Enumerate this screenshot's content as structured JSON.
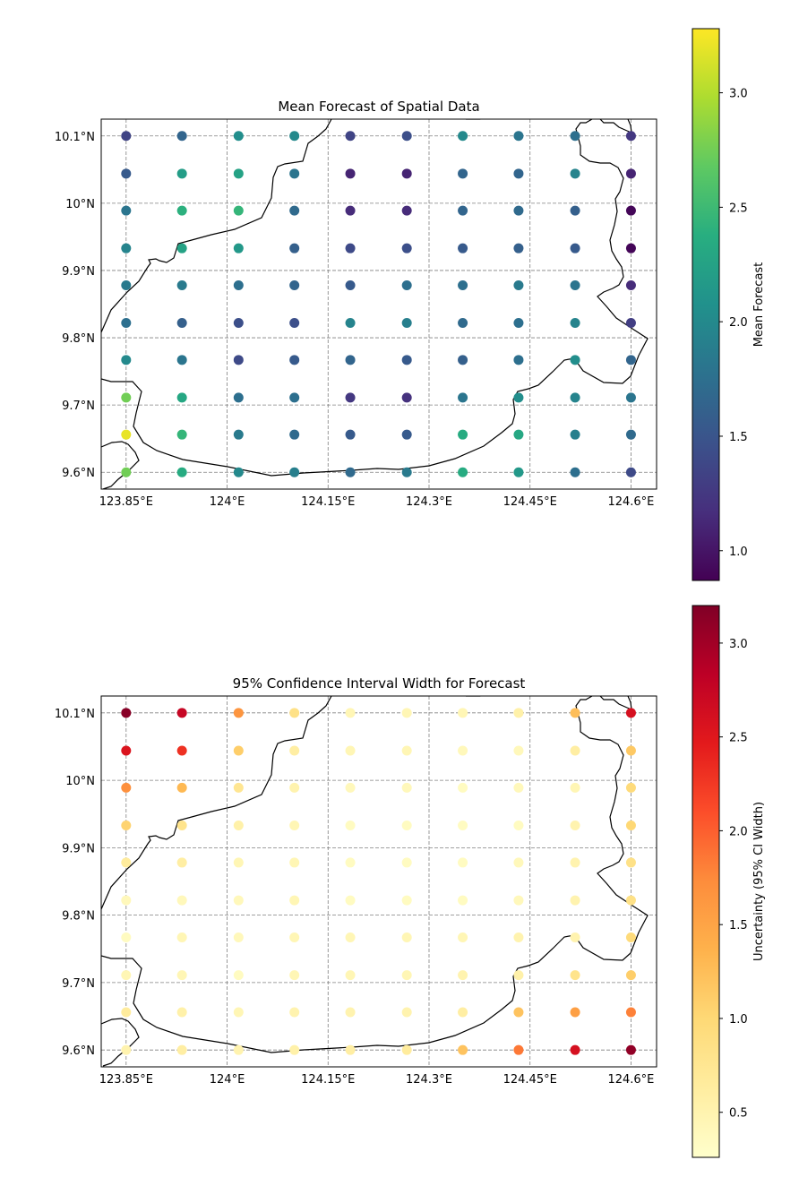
{
  "chart_data": [
    {
      "type": "scatter",
      "title": "Mean Forecast of Spatial Data",
      "colorbar_label": "Mean Forecast",
      "colormap": "viridis",
      "clim": [
        0.87,
        3.28
      ],
      "colorbar_ticks": [
        "1.0",
        "1.5",
        "2.0",
        "2.5",
        "3.0"
      ],
      "colorbar_tick_values": [
        1.0,
        1.5,
        2.0,
        2.5,
        3.0
      ],
      "x_ticks": [
        "123.85°E",
        "124°E",
        "124.15°E",
        "124.3°E",
        "124.45°E",
        "124.6°E"
      ],
      "x_tick_values": [
        123.85,
        124.0,
        124.15,
        124.3,
        124.45,
        124.6
      ],
      "y_ticks": [
        "9.6°N",
        "9.7°N",
        "9.8°N",
        "9.9°N",
        "10°N",
        "10.1°N"
      ],
      "y_tick_values": [
        9.6,
        9.7,
        9.8,
        9.9,
        10.0,
        10.1
      ],
      "xlim": [
        123.813,
        124.638
      ],
      "ylim": [
        9.575,
        10.125
      ],
      "grid": true,
      "lon": [
        123.85,
        123.933,
        124.017,
        124.1,
        124.183,
        124.267,
        124.35,
        124.433,
        124.517,
        124.6
      ],
      "lat": [
        10.1,
        10.044,
        9.989,
        9.933,
        9.878,
        9.822,
        9.767,
        9.711,
        9.656,
        9.6
      ],
      "values": [
        [
          1.35,
          1.65,
          2.05,
          2.0,
          1.35,
          1.45,
          2.0,
          1.8,
          1.75,
          1.25
        ],
        [
          1.55,
          2.2,
          2.25,
          1.8,
          1.1,
          1.1,
          1.65,
          1.65,
          1.95,
          1.1
        ],
        [
          1.8,
          2.4,
          2.45,
          1.7,
          1.15,
          1.15,
          1.65,
          1.7,
          1.6,
          0.9
        ],
        [
          1.95,
          2.25,
          2.15,
          1.6,
          1.4,
          1.45,
          1.55,
          1.6,
          1.55,
          0.9
        ],
        [
          1.85,
          1.85,
          1.75,
          1.65,
          1.55,
          1.75,
          1.75,
          1.85,
          1.8,
          1.15
        ],
        [
          1.75,
          1.6,
          1.45,
          1.45,
          1.95,
          1.9,
          1.7,
          1.75,
          1.95,
          1.3
        ],
        [
          2.0,
          1.8,
          1.4,
          1.55,
          1.65,
          1.55,
          1.6,
          1.75,
          2.05,
          1.65
        ],
        [
          2.75,
          2.3,
          1.75,
          1.75,
          1.25,
          1.2,
          1.8,
          2.05,
          1.95,
          1.8
        ],
        [
          3.2,
          2.45,
          1.85,
          1.7,
          1.55,
          1.55,
          2.35,
          2.3,
          1.9,
          1.7
        ],
        [
          2.75,
          2.35,
          2.0,
          1.9,
          1.7,
          1.85,
          2.35,
          2.15,
          1.75,
          1.4
        ]
      ]
    },
    {
      "type": "scatter",
      "title": "95% Confidence Interval Width for Forecast",
      "colorbar_label": "Uncertainty (95% CI Width)",
      "colormap": "YlOrRd",
      "clim": [
        0.26,
        3.2
      ],
      "colorbar_ticks": [
        "0.5",
        "1.0",
        "1.5",
        "2.0",
        "2.5",
        "3.0"
      ],
      "colorbar_tick_values": [
        0.5,
        1.0,
        1.5,
        2.0,
        2.5,
        3.0
      ],
      "x_ticks": [
        "123.85°E",
        "124°E",
        "124.15°E",
        "124.3°E",
        "124.45°E",
        "124.6°E"
      ],
      "x_tick_values": [
        123.85,
        124.0,
        124.15,
        124.3,
        124.45,
        124.6
      ],
      "y_ticks": [
        "9.6°N",
        "9.7°N",
        "9.8°N",
        "9.9°N",
        "10°N",
        "10.1°N"
      ],
      "y_tick_values": [
        9.6,
        9.7,
        9.8,
        9.9,
        10.0,
        10.1
      ],
      "xlim": [
        123.813,
        124.638
      ],
      "ylim": [
        9.575,
        10.125
      ],
      "grid": true,
      "lon": [
        123.85,
        123.933,
        124.017,
        124.1,
        124.183,
        124.267,
        124.35,
        124.433,
        124.517,
        124.6
      ],
      "lat": [
        10.1,
        10.044,
        9.989,
        9.933,
        9.878,
        9.822,
        9.767,
        9.711,
        9.656,
        9.6
      ],
      "values": [
        [
          3.15,
          2.75,
          1.65,
          0.85,
          0.45,
          0.45,
          0.45,
          0.55,
          1.25,
          2.6
        ],
        [
          2.55,
          2.3,
          1.1,
          0.6,
          0.45,
          0.45,
          0.4,
          0.4,
          0.6,
          1.15
        ],
        [
          1.7,
          1.3,
          0.75,
          0.5,
          0.4,
          0.4,
          0.35,
          0.4,
          0.45,
          0.95
        ],
        [
          1.05,
          0.8,
          0.55,
          0.45,
          0.35,
          0.35,
          0.35,
          0.35,
          0.5,
          1.0
        ],
        [
          0.65,
          0.6,
          0.45,
          0.45,
          0.35,
          0.35,
          0.35,
          0.4,
          0.5,
          0.85
        ],
        [
          0.4,
          0.4,
          0.4,
          0.45,
          0.35,
          0.35,
          0.35,
          0.4,
          0.5,
          0.85
        ],
        [
          0.35,
          0.45,
          0.4,
          0.45,
          0.45,
          0.45,
          0.45,
          0.5,
          0.5,
          0.95
        ],
        [
          0.45,
          0.45,
          0.35,
          0.45,
          0.45,
          0.45,
          0.5,
          0.55,
          0.8,
          1.1
        ],
        [
          0.65,
          0.55,
          0.45,
          0.5,
          0.5,
          0.5,
          0.6,
          1.2,
          1.55,
          1.8
        ],
        [
          0.5,
          0.6,
          0.5,
          0.55,
          0.6,
          0.65,
          1.2,
          1.85,
          2.6,
          3.1
        ]
      ]
    }
  ]
}
